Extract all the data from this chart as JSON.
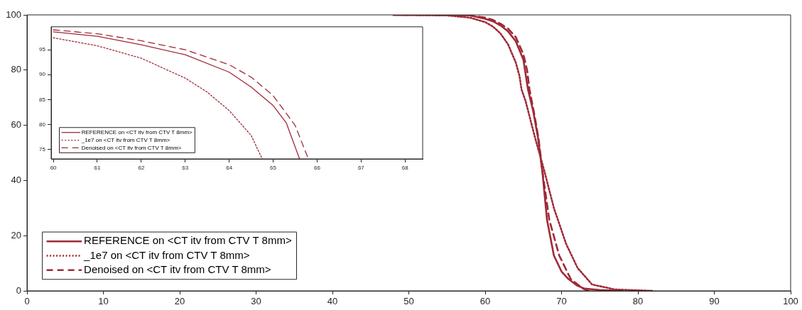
{
  "chart_data": [
    {
      "type": "line",
      "xlim": [
        0,
        100
      ],
      "ylim": [
        0,
        100
      ],
      "xticks": [
        0,
        10,
        20,
        30,
        40,
        50,
        60,
        70,
        80,
        90,
        100
      ],
      "yticks": [
        0,
        20,
        40,
        60,
        80,
        100
      ],
      "legend": "bottom left",
      "marker": "none",
      "series": [
        {
          "name": "REFERENCE on <CT itv from CTV T 8mm>",
          "color": "#9e2a36",
          "line_style": "solid",
          "x": [
            48,
            55,
            58,
            60,
            61,
            62,
            63,
            64,
            65,
            65.6,
            66.3,
            66.9,
            67.5,
            68.1,
            69,
            70,
            70.9,
            72,
            73,
            75,
            78
          ],
          "values": [
            100,
            100,
            99.8,
            98.6,
            97.7,
            96.2,
            94,
            90.5,
            83.8,
            73.1,
            65,
            55.8,
            42.9,
            25.7,
            12.8,
            7,
            4.3,
            2,
            0.8,
            0.3,
            0
          ]
        },
        {
          "name": "_1e7 on <CT itv from CTV T 8mm>",
          "color": "#9e2a36",
          "line_style": "dotted",
          "x": [
            48,
            55,
            58,
            60,
            61,
            62,
            63,
            64,
            64.5,
            64.75,
            65.3,
            66.5,
            67.8,
            69,
            70.6,
            72.1,
            74,
            77,
            82
          ],
          "values": [
            100,
            99.8,
            99,
            97.4,
            95.8,
            93.3,
            89.3,
            82.8,
            77.8,
            73.1,
            68.7,
            55.8,
            42.9,
            30,
            17,
            8.3,
            2.3,
            0.5,
            0
          ]
        },
        {
          "name": "Denoised on <CT itv from CTV T 8mm>",
          "color": "#9e2a36",
          "line_style": "dashed",
          "x": [
            48,
            55,
            58,
            60,
            61,
            62,
            63,
            64,
            65,
            65.5,
            65.8,
            66.5,
            67,
            67.6,
            68.4,
            69.7,
            71.2,
            72.8,
            73.5
          ],
          "values": [
            100,
            100,
            99.8,
            99,
            98.2,
            96.8,
            95,
            92,
            85.8,
            79.8,
            73.1,
            63,
            55,
            41.2,
            25.7,
            12.8,
            4.3,
            0.8,
            0
          ]
        }
      ]
    },
    {
      "type": "line",
      "xlim": [
        59.95,
        68.4
      ],
      "ylim": [
        73.1,
        99.6
      ],
      "xticks": [
        60,
        61,
        62,
        63,
        64,
        65,
        66,
        67,
        68
      ],
      "yticks": [
        75,
        80,
        85,
        90,
        95
      ],
      "legend": "bottom left",
      "marker": "none",
      "series": [
        {
          "name": "REFERENCE on <CT itv from CTV T 8mm>",
          "color": "#9e2a36",
          "line_style": "solid",
          "x": [
            60,
            61,
            62,
            63,
            64,
            64.5,
            65,
            65.3,
            65.6
          ],
          "values": [
            98.6,
            97.7,
            96,
            94,
            90.5,
            87.5,
            83.8,
            80.3,
            73.1
          ]
        },
        {
          "name": "_1e7 on <CT itv from CTV T 8mm>",
          "color": "#9e2a36",
          "line_style": "dotted",
          "x": [
            60,
            61,
            62,
            63,
            63.5,
            64,
            64.5,
            64.75
          ],
          "values": [
            97.4,
            95.8,
            93.3,
            89.3,
            86.5,
            82.8,
            77.8,
            73.1
          ]
        },
        {
          "name": "Denoised on <CT itv from CTV T 8mm>",
          "color": "#9e2a36",
          "line_style": "dashed",
          "x": [
            60,
            61,
            62,
            63,
            64,
            64.5,
            65,
            65.5,
            65.8
          ],
          "values": [
            99,
            98.2,
            96.8,
            95,
            92,
            89.5,
            85.8,
            79.8,
            73.1
          ]
        }
      ]
    }
  ]
}
